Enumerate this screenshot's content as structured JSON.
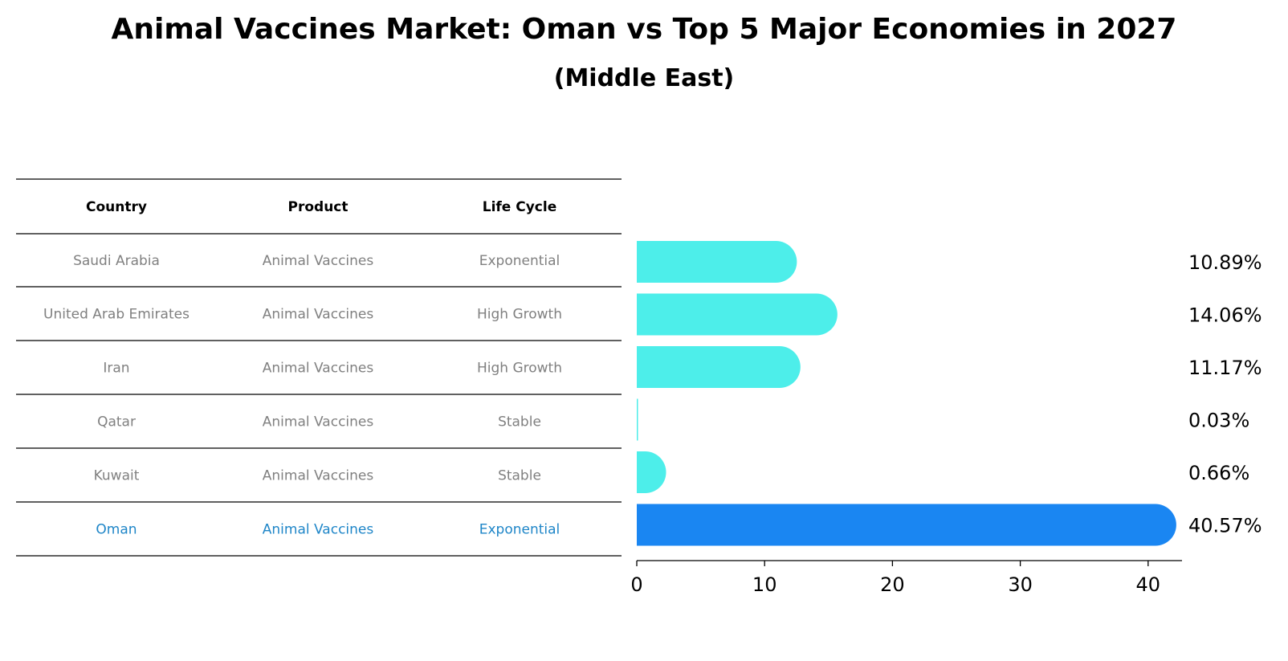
{
  "title": "Animal Vaccines Market: Oman vs Top 5 Major Economies in 2027",
  "subtitle": "(Middle East)",
  "colors": {
    "bar": "#4deeea",
    "highlight_bar": "#1a86f2",
    "highlight_text": "#1f86c8",
    "muted_text": "#808080"
  },
  "table": {
    "headers": [
      "Country",
      "Product",
      "Life Cycle"
    ],
    "rows": [
      [
        "Saudi Arabia",
        "Animal Vaccines",
        "Exponential"
      ],
      [
        "United Arab Emirates",
        "Animal Vaccines",
        "High Growth"
      ],
      [
        "Iran",
        "Animal Vaccines",
        "High Growth"
      ],
      [
        "Qatar",
        "Animal Vaccines",
        "Stable"
      ],
      [
        "Kuwait",
        "Animal Vaccines",
        "Stable"
      ],
      [
        "Oman",
        "Animal Vaccines",
        "Exponential"
      ]
    ],
    "highlight_row": 5
  },
  "chart_data": {
    "type": "bar",
    "orientation": "horizontal",
    "categories": [
      "Saudi Arabia",
      "United Arab Emirates",
      "Iran",
      "Qatar",
      "Kuwait",
      "Oman"
    ],
    "values": [
      10.89,
      14.06,
      11.17,
      0.03,
      0.66,
      40.57
    ],
    "value_labels": [
      "10.89%",
      "14.06%",
      "11.17%",
      "0.03%",
      "0.66%",
      "40.57%"
    ],
    "xticks": [
      "0",
      "10",
      "20",
      "30",
      "40"
    ],
    "xlim": [
      0,
      42.6
    ],
    "highlight_index": 5,
    "title": "Animal Vaccines Market: Oman vs Top 5 Major Economies in 2027",
    "subtitle": "(Middle East)",
    "grid": false
  }
}
